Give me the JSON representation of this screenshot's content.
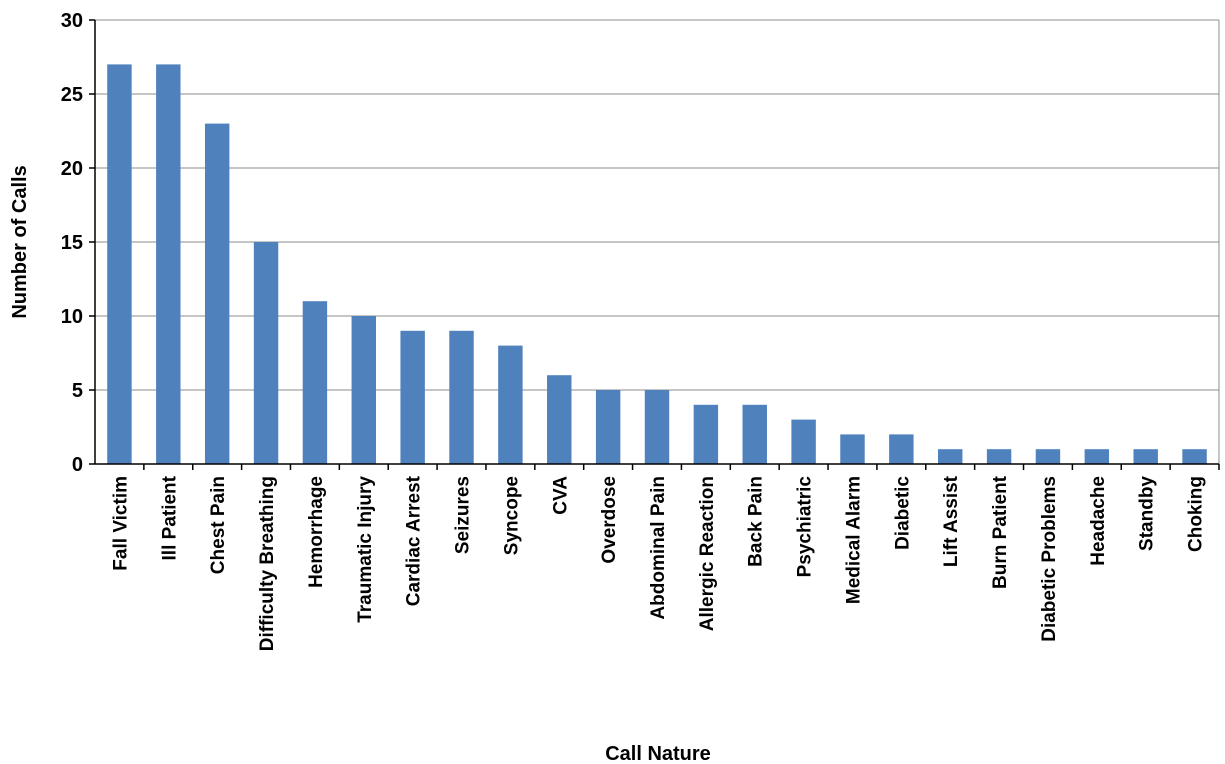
{
  "chart_data": {
    "type": "bar",
    "categories": [
      "Fall Victim",
      "Ill Patient",
      "Chest Pain",
      "Difficulty Breathing",
      "Hemorrhage",
      "Traumatic Injury",
      "Cardiac Arrest",
      "Seizures",
      "Syncope",
      "CVA",
      "Overdose",
      "Abdominal Pain",
      "Allergic Reaction",
      "Back Pain",
      "Psychiatric",
      "Medical Alarm",
      "Diabetic",
      "Lift Assist",
      "Burn Patient",
      "Diabetic Problems",
      "Headache",
      "Standby",
      "Choking"
    ],
    "values": [
      27,
      27,
      23,
      15,
      11,
      10,
      9,
      9,
      8,
      6,
      5,
      5,
      4,
      4,
      3,
      2,
      2,
      1,
      1,
      1,
      1,
      1,
      1
    ],
    "title": "",
    "xlabel": "Call Nature",
    "ylabel": "Number of Calls",
    "ylim": [
      0,
      30
    ],
    "yticks": [
      0,
      5,
      10,
      15,
      20,
      25,
      30
    ],
    "grid": true,
    "legend": "none",
    "bar_color": "#4f81bd"
  }
}
